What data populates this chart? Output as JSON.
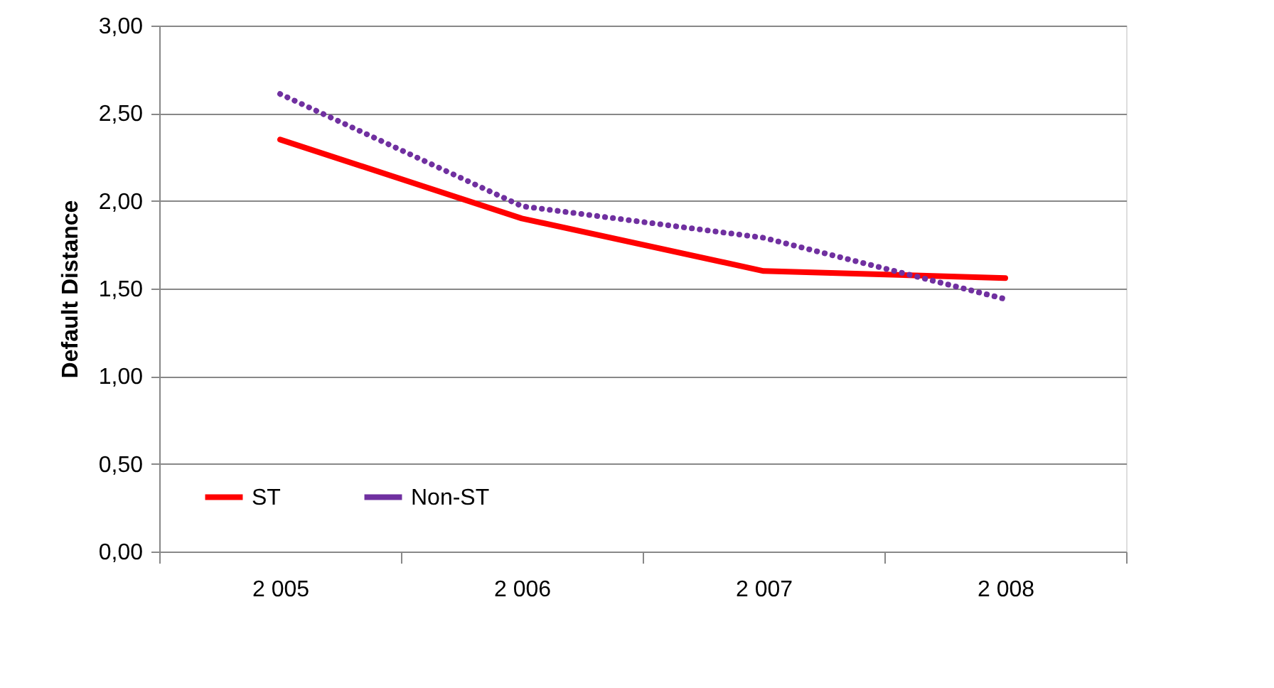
{
  "chart_data": {
    "type": "line",
    "ylabel": "Default Distance",
    "categories": [
      "2 005",
      "2 006",
      "2 007",
      "2 008"
    ],
    "series": [
      {
        "name": "ST",
        "color": "#ff0000",
        "line_style": "solid",
        "values": [
          2.35,
          1.9,
          1.6,
          1.56
        ]
      },
      {
        "name": "Non-ST",
        "color": "#7030a0",
        "line_style": "dotted",
        "values": [
          2.61,
          1.97,
          1.79,
          1.44
        ]
      }
    ],
    "ylim": [
      0,
      3
    ],
    "yticks": [
      {
        "value": 0,
        "label": "0,00"
      },
      {
        "value": 0.5,
        "label": "0,50"
      },
      {
        "value": 1,
        "label": "1,00"
      },
      {
        "value": 1.5,
        "label": "1,50"
      },
      {
        "value": 2,
        "label": "2,00"
      },
      {
        "value": 2.5,
        "label": "2,50"
      },
      {
        "value": 3,
        "label": "3,00"
      }
    ],
    "grid": "y",
    "legend": "bottom left",
    "marker": "none"
  }
}
